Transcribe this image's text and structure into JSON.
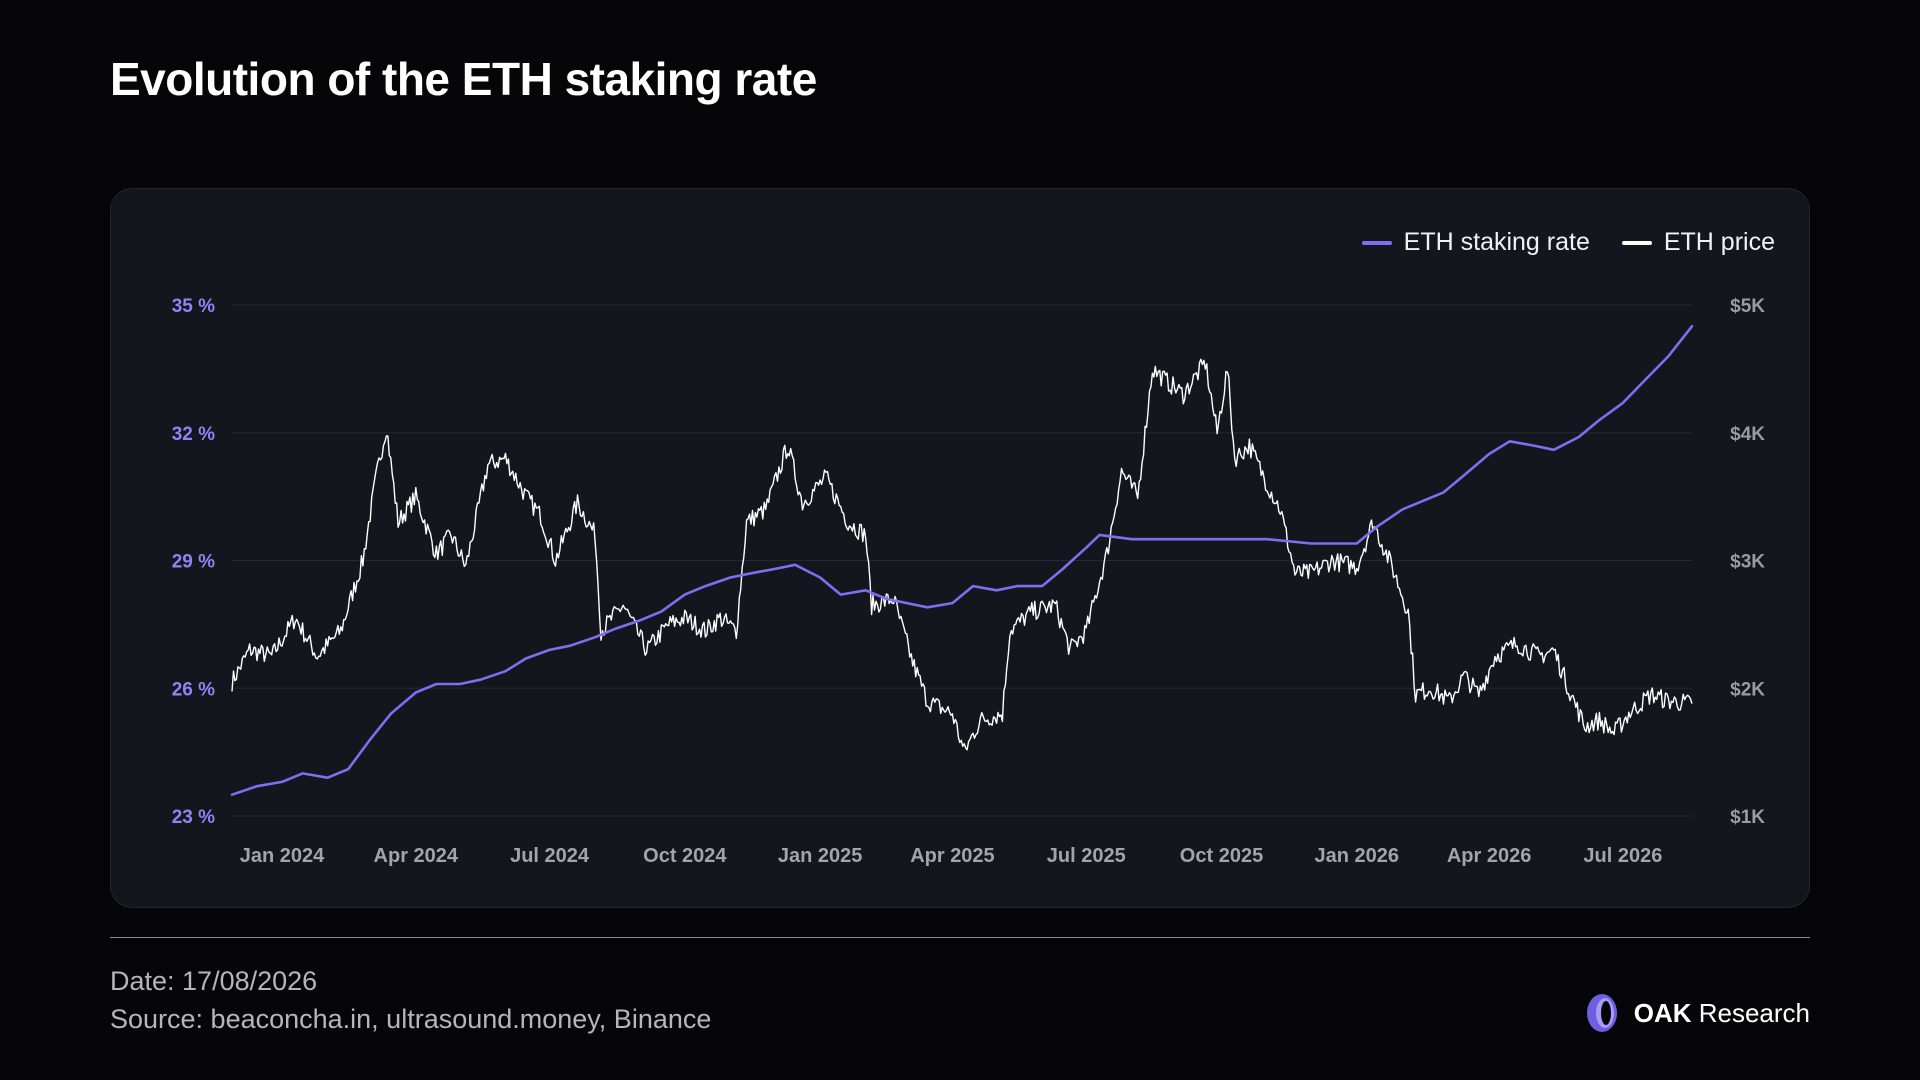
{
  "title": "Evolution of the ETH staking rate",
  "footer": {
    "date": "Date: 17/08/2026",
    "source": "Source: beaconcha.in, ultrasound.money, Binance"
  },
  "brand": {
    "bold": "OAK",
    "rest": " Research",
    "logo_icon": "oak-ring-logo-icon"
  },
  "colors": {
    "staking": "#7d6ff0",
    "price": "#ffffff",
    "left_axis": "#8f83f5",
    "right_axis": "#9a9ba3",
    "grid": "#262730"
  },
  "chart_data": {
    "type": "line",
    "grid": true,
    "legend_position": "top-right",
    "x_range": [
      "2023-11-28",
      "2026-08-17"
    ],
    "x_ticks": [
      "Jan 2024",
      "Apr 2024",
      "Jul 2024",
      "Oct 2024",
      "Jan 2025",
      "Apr 2025",
      "Jul 2025",
      "Oct 2025",
      "Jan 2026",
      "Apr 2026",
      "Jul 2026"
    ],
    "x_tick_dates": [
      "2024-01-01",
      "2024-04-01",
      "2024-07-01",
      "2024-10-01",
      "2025-01-01",
      "2025-04-01",
      "2025-07-01",
      "2025-10-01",
      "2026-01-01",
      "2026-04-01",
      "2026-07-01"
    ],
    "left_axis": {
      "ticks": [
        "35 %",
        "32 %",
        "29 %",
        "26 %",
        "23 %"
      ],
      "range": [
        23,
        35
      ]
    },
    "right_axis": {
      "ticks": [
        "$5K",
        "$4K",
        "$3K",
        "$2K",
        "$1K"
      ],
      "range": [
        1000,
        5000
      ]
    },
    "series": [
      {
        "name": "ETH staking rate",
        "axis": "left",
        "unit": "%",
        "points": [
          [
            "2023-11-28",
            23.5
          ],
          [
            "2023-12-15",
            23.7
          ],
          [
            "2024-01-01",
            23.8
          ],
          [
            "2024-01-15",
            24.0
          ],
          [
            "2024-02-01",
            23.9
          ],
          [
            "2024-02-15",
            24.1
          ],
          [
            "2024-03-01",
            24.8
          ],
          [
            "2024-03-15",
            25.4
          ],
          [
            "2024-04-01",
            25.9
          ],
          [
            "2024-04-15",
            26.1
          ],
          [
            "2024-05-01",
            26.1
          ],
          [
            "2024-05-15",
            26.2
          ],
          [
            "2024-06-01",
            26.4
          ],
          [
            "2024-06-15",
            26.7
          ],
          [
            "2024-07-01",
            26.9
          ],
          [
            "2024-07-15",
            27.0
          ],
          [
            "2024-08-01",
            27.2
          ],
          [
            "2024-08-15",
            27.4
          ],
          [
            "2024-09-01",
            27.6
          ],
          [
            "2024-09-15",
            27.8
          ],
          [
            "2024-10-01",
            28.2
          ],
          [
            "2024-10-15",
            28.4
          ],
          [
            "2024-11-01",
            28.6
          ],
          [
            "2024-11-15",
            28.7
          ],
          [
            "2024-12-01",
            28.8
          ],
          [
            "2024-12-15",
            28.9
          ],
          [
            "2025-01-01",
            28.6
          ],
          [
            "2025-01-15",
            28.2
          ],
          [
            "2025-02-01",
            28.3
          ],
          [
            "2025-02-15",
            28.1
          ],
          [
            "2025-03-01",
            28.0
          ],
          [
            "2025-03-15",
            27.9
          ],
          [
            "2025-04-01",
            28.0
          ],
          [
            "2025-04-15",
            28.4
          ],
          [
            "2025-05-01",
            28.3
          ],
          [
            "2025-05-15",
            28.4
          ],
          [
            "2025-06-01",
            28.4
          ],
          [
            "2025-06-15",
            28.8
          ],
          [
            "2025-07-01",
            29.3
          ],
          [
            "2025-07-10",
            29.6
          ],
          [
            "2025-08-01",
            29.5
          ],
          [
            "2025-09-01",
            29.5
          ],
          [
            "2025-10-01",
            29.5
          ],
          [
            "2025-11-01",
            29.5
          ],
          [
            "2025-12-01",
            29.4
          ],
          [
            "2026-01-01",
            29.4
          ],
          [
            "2026-01-15",
            29.8
          ],
          [
            "2026-02-01",
            30.2
          ],
          [
            "2026-02-15",
            30.4
          ],
          [
            "2026-03-01",
            30.6
          ],
          [
            "2026-03-15",
            31.0
          ],
          [
            "2026-04-01",
            31.5
          ],
          [
            "2026-04-15",
            31.8
          ],
          [
            "2026-05-01",
            31.7
          ],
          [
            "2026-05-15",
            31.6
          ],
          [
            "2026-06-01",
            31.9
          ],
          [
            "2026-06-15",
            32.3
          ],
          [
            "2026-07-01",
            32.7
          ],
          [
            "2026-07-15",
            33.2
          ],
          [
            "2026-08-01",
            33.8
          ],
          [
            "2026-08-17",
            34.5
          ]
        ]
      },
      {
        "name": "ETH price",
        "axis": "right",
        "unit": "USD",
        "points": [
          [
            "2023-11-28",
            2050
          ],
          [
            "2023-12-10",
            2300
          ],
          [
            "2023-12-25",
            2250
          ],
          [
            "2024-01-10",
            2550
          ],
          [
            "2024-01-25",
            2250
          ],
          [
            "2024-02-10",
            2450
          ],
          [
            "2024-02-25",
            3000
          ],
          [
            "2024-03-05",
            3650
          ],
          [
            "2024-03-12",
            4050
          ],
          [
            "2024-03-20",
            3300
          ],
          [
            "2024-04-01",
            3500
          ],
          [
            "2024-04-15",
            3050
          ],
          [
            "2024-04-25",
            3200
          ],
          [
            "2024-05-05",
            2950
          ],
          [
            "2024-05-20",
            3750
          ],
          [
            "2024-06-01",
            3800
          ],
          [
            "2024-06-15",
            3500
          ],
          [
            "2024-06-25",
            3350
          ],
          [
            "2024-07-05",
            3000
          ],
          [
            "2024-07-20",
            3450
          ],
          [
            "2024-08-01",
            3200
          ],
          [
            "2024-08-05",
            2450
          ],
          [
            "2024-08-20",
            2650
          ],
          [
            "2024-09-05",
            2300
          ],
          [
            "2024-09-20",
            2500
          ],
          [
            "2024-10-01",
            2550
          ],
          [
            "2024-10-15",
            2450
          ],
          [
            "2024-10-25",
            2550
          ],
          [
            "2024-11-05",
            2450
          ],
          [
            "2024-11-12",
            3300
          ],
          [
            "2024-11-25",
            3400
          ],
          [
            "2024-12-10",
            3900
          ],
          [
            "2024-12-20",
            3450
          ],
          [
            "2025-01-05",
            3650
          ],
          [
            "2025-01-20",
            3300
          ],
          [
            "2025-02-01",
            3200
          ],
          [
            "2025-02-05",
            2650
          ],
          [
            "2025-02-20",
            2700
          ],
          [
            "2025-03-05",
            2200
          ],
          [
            "2025-03-15",
            1900
          ],
          [
            "2025-04-01",
            1800
          ],
          [
            "2025-04-09",
            1500
          ],
          [
            "2025-04-20",
            1750
          ],
          [
            "2025-05-05",
            1800
          ],
          [
            "2025-05-10",
            2450
          ],
          [
            "2025-05-25",
            2600
          ],
          [
            "2025-06-10",
            2650
          ],
          [
            "2025-06-20",
            2300
          ],
          [
            "2025-07-01",
            2450
          ],
          [
            "2025-07-15",
            3050
          ],
          [
            "2025-07-25",
            3700
          ],
          [
            "2025-08-05",
            3500
          ],
          [
            "2025-08-15",
            4500
          ],
          [
            "2025-08-25",
            4400
          ],
          [
            "2025-09-05",
            4300
          ],
          [
            "2025-09-20",
            4550
          ],
          [
            "2025-09-28",
            4000
          ],
          [
            "2025-10-05",
            4500
          ],
          [
            "2025-10-10",
            3800
          ],
          [
            "2025-10-20",
            3900
          ],
          [
            "2025-11-01",
            3600
          ],
          [
            "2025-11-10",
            3400
          ],
          [
            "2025-11-20",
            2900
          ],
          [
            "2025-12-01",
            2900
          ],
          [
            "2025-12-15",
            3000
          ],
          [
            "2026-01-01",
            2950
          ],
          [
            "2026-01-12",
            3300
          ],
          [
            "2026-01-25",
            2950
          ],
          [
            "2026-02-05",
            2600
          ],
          [
            "2026-02-10",
            1950
          ],
          [
            "2026-02-20",
            2000
          ],
          [
            "2026-03-05",
            1900
          ],
          [
            "2026-03-15",
            2100
          ],
          [
            "2026-03-25",
            1950
          ],
          [
            "2026-04-05",
            2250
          ],
          [
            "2026-04-20",
            2350
          ],
          [
            "2026-05-05",
            2250
          ],
          [
            "2026-05-15",
            2300
          ],
          [
            "2026-05-25",
            2000
          ],
          [
            "2026-06-05",
            1700
          ],
          [
            "2026-06-15",
            1750
          ],
          [
            "2026-06-25",
            1650
          ],
          [
            "2026-07-05",
            1800
          ],
          [
            "2026-07-20",
            1950
          ],
          [
            "2026-08-01",
            1900
          ],
          [
            "2026-08-17",
            1880
          ]
        ]
      }
    ]
  }
}
